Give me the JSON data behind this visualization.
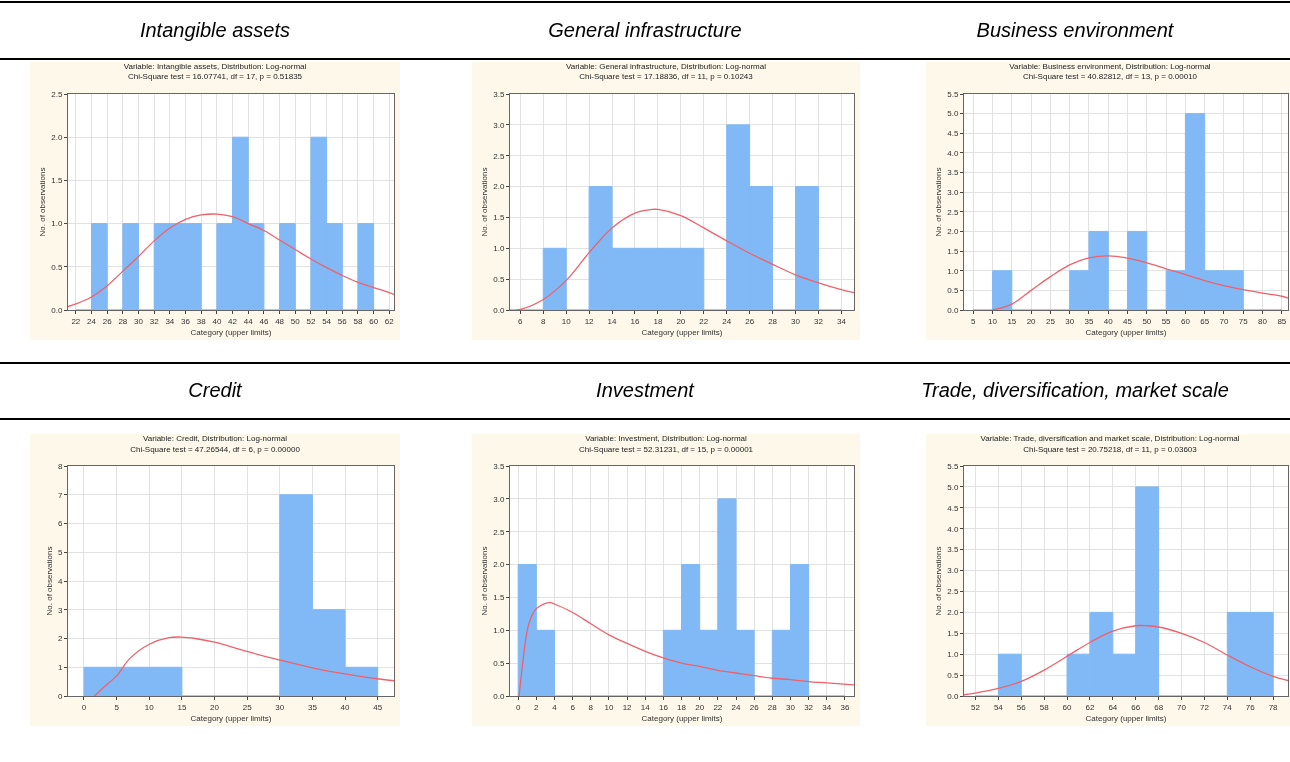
{
  "chart_data": [
    {
      "type": "histogram",
      "title": "Intangible assets",
      "subtitle": "Variable: Intangible assets, Distribution: Log-normal",
      "annotations": [
        "Chi-Square test = 16.07741, df = 17, p = 0.51835"
      ],
      "xlabel": "Category (upper limits)",
      "ylabel": "No. of observations",
      "grid": true,
      "bins": [
        22,
        24,
        26,
        28,
        30,
        32,
        34,
        36,
        38,
        40,
        42,
        44,
        46,
        48,
        50,
        52,
        54,
        56,
        58,
        60,
        62
      ],
      "series": [
        {
          "color": "#80b9f5",
          "values": [
            0,
            1,
            0,
            1,
            0,
            1,
            1,
            1,
            0,
            1,
            2,
            1,
            0,
            1,
            0,
            2,
            1,
            0,
            1,
            0
          ]
        },
        {
          "type": "line",
          "color": "#f0606a",
          "x": [
            21,
            22,
            24,
            26,
            28,
            30,
            32,
            34,
            36,
            38,
            40,
            42,
            44,
            46,
            48,
            50,
            52,
            54,
            56,
            58,
            60,
            62,
            62.6
          ],
          "values": [
            0.04,
            0.07,
            0.15,
            0.28,
            0.45,
            0.62,
            0.8,
            0.95,
            1.05,
            1.1,
            1.11,
            1.08,
            1.0,
            0.92,
            0.81,
            0.7,
            0.59,
            0.49,
            0.4,
            0.32,
            0.26,
            0.2,
            0.18
          ]
        }
      ],
      "xlim": [
        21,
        62.6
      ],
      "xticks": [
        22,
        24,
        26,
        28,
        30,
        32,
        34,
        36,
        38,
        40,
        42,
        44,
        46,
        48,
        50,
        52,
        54,
        56,
        58,
        60,
        62
      ],
      "ylim": [
        0,
        2.5
      ],
      "yticks": [
        {
          "value": 0,
          "label": "0.0"
        },
        {
          "value": 0.5,
          "label": "0.5"
        },
        {
          "value": 1,
          "label": "1.0"
        },
        {
          "value": 1.5,
          "label": "1.5"
        },
        {
          "value": 2,
          "label": "2.0"
        },
        {
          "value": 2.5,
          "label": "2.5"
        }
      ]
    },
    {
      "type": "histogram",
      "title": "General infrastructure",
      "subtitle": "Variable: General infrastructure, Distribution: Log-normal",
      "annotations": [
        "Chi-Square test = 17.18836, df = 11, p = 0.10243"
      ],
      "xlabel": "Category (upper limits)",
      "ylabel": "No. of observations",
      "grid": true,
      "bins": [
        6,
        8,
        10,
        12,
        14,
        16,
        18,
        20,
        22,
        24,
        26,
        28,
        30,
        32,
        34
      ],
      "series": [
        {
          "color": "#80b9f5",
          "values": [
            0,
            1,
            0,
            2,
            1,
            1,
            1,
            1,
            0,
            3,
            2,
            0,
            2,
            0
          ]
        },
        {
          "type": "line",
          "color": "#f0606a",
          "x": [
            5.1,
            6,
            8,
            10,
            12,
            14,
            16,
            17.5,
            18,
            20,
            22,
            24,
            26,
            28,
            30,
            32,
            34,
            35.1
          ],
          "values": [
            0,
            0.01,
            0.17,
            0.48,
            0.93,
            1.33,
            1.57,
            1.63,
            1.63,
            1.53,
            1.33,
            1.12,
            0.92,
            0.74,
            0.57,
            0.44,
            0.33,
            0.28
          ]
        }
      ],
      "xlim": [
        5.1,
        35.1
      ],
      "xticks": [
        6,
        8,
        10,
        12,
        14,
        16,
        18,
        20,
        22,
        24,
        26,
        28,
        30,
        32,
        34
      ],
      "ylim": [
        0,
        3.5
      ],
      "yticks": [
        {
          "value": 0,
          "label": "0.0"
        },
        {
          "value": 0.5,
          "label": "0.5"
        },
        {
          "value": 1,
          "label": "1.0"
        },
        {
          "value": 1.5,
          "label": "1.5"
        },
        {
          "value": 2,
          "label": "2.0"
        },
        {
          "value": 2.5,
          "label": "2.5"
        },
        {
          "value": 3,
          "label": "3.0"
        },
        {
          "value": 3.5,
          "label": "3.5"
        }
      ]
    },
    {
      "type": "histogram",
      "title": "Business environment",
      "subtitle": "Variable: Business environment, Distribution: Log-normal",
      "annotations": [
        "Chi-Square test = 40.82812, df = 13, p = 0.00010"
      ],
      "xlabel": "Category (upper limits)",
      "ylabel": "No. of observations",
      "grid": true,
      "bins": [
        5,
        10,
        15,
        20,
        25,
        30,
        35,
        40,
        45,
        50,
        55,
        60,
        65,
        70,
        75,
        80,
        85
      ],
      "series": [
        {
          "color": "#80b9f5",
          "values": [
            0,
            1,
            0,
            0,
            0,
            1,
            2,
            0,
            2,
            0,
            1,
            5,
            1,
            1,
            0,
            0
          ]
        },
        {
          "type": "line",
          "color": "#f0606a",
          "x": [
            10,
            15,
            20,
            25,
            30,
            35,
            40,
            45,
            50,
            55,
            60,
            65,
            70,
            75,
            80,
            85,
            86.6
          ],
          "values": [
            0,
            0.15,
            0.5,
            0.85,
            1.15,
            1.33,
            1.38,
            1.32,
            1.2,
            1.05,
            0.9,
            0.75,
            0.62,
            0.52,
            0.43,
            0.35,
            0.3
          ]
        }
      ],
      "xlim": [
        2.6,
        86.6
      ],
      "xticks": [
        5,
        10,
        15,
        20,
        25,
        30,
        35,
        40,
        45,
        50,
        55,
        60,
        65,
        70,
        75,
        80,
        85
      ],
      "ylim": [
        0,
        5.5
      ],
      "yticks": [
        {
          "value": 0,
          "label": "0.0"
        },
        {
          "value": 0.5,
          "label": "0.5"
        },
        {
          "value": 1,
          "label": "1.0"
        },
        {
          "value": 1.5,
          "label": "1.5"
        },
        {
          "value": 2,
          "label": "2.0"
        },
        {
          "value": 2.5,
          "label": "2.5"
        },
        {
          "value": 3,
          "label": "3.0"
        },
        {
          "value": 3.5,
          "label": "3.5"
        },
        {
          "value": 4,
          "label": "4.0"
        },
        {
          "value": 4.5,
          "label": "4.5"
        },
        {
          "value": 5,
          "label": "5.0"
        },
        {
          "value": 5.5,
          "label": "5.5"
        }
      ]
    },
    {
      "type": "histogram",
      "title": "Credit",
      "subtitle": "Variable: Credit, Distribution: Log-normal",
      "annotations": [
        "Chi-Square test = 47.26544, df = 6, p = 0.00000"
      ],
      "xlabel": "Category (upper limits)",
      "ylabel": "No. of observations",
      "grid": true,
      "bins": [
        0,
        5,
        10,
        15,
        20,
        25,
        30,
        35,
        40,
        45
      ],
      "series": [
        {
          "color": "#80b9f5",
          "values": [
            1,
            1,
            1,
            0,
            0,
            0,
            7,
            3,
            1
          ]
        },
        {
          "type": "line",
          "color": "#f0606a",
          "x": [
            1.6,
            3,
            5,
            7,
            10,
            13,
            15,
            17,
            20,
            25,
            30,
            35,
            40,
            45,
            47.5
          ],
          "values": [
            0,
            0.3,
            0.7,
            1.3,
            1.8,
            2.03,
            2.05,
            2.0,
            1.87,
            1.55,
            1.25,
            0.98,
            0.77,
            0.6,
            0.53
          ]
        }
      ],
      "xlim": [
        -2.45,
        47.5
      ],
      "xticks": [
        0,
        5,
        10,
        15,
        20,
        25,
        30,
        35,
        40,
        45
      ],
      "ylim": [
        0,
        8
      ],
      "yticks": [
        0,
        1,
        2,
        3,
        4,
        5,
        6,
        7,
        8
      ]
    },
    {
      "type": "histogram",
      "title": "Investment",
      "subtitle": "Variable: Investment, Distribution: Log-normal",
      "annotations": [
        "Chi-Square test = 52.31231, df = 15, p = 0.00001"
      ],
      "xlabel": "Category (upper limits)",
      "ylabel": "No. of observations",
      "grid": true,
      "bins": [
        0,
        2,
        4,
        6,
        8,
        10,
        12,
        14,
        16,
        18,
        20,
        22,
        24,
        26,
        28,
        30,
        32,
        34,
        36
      ],
      "series": [
        {
          "color": "#80b9f5",
          "values": [
            2,
            1,
            0,
            0,
            0,
            0,
            0,
            0,
            1,
            2,
            1,
            3,
            1,
            0,
            1,
            2,
            0,
            0
          ]
        },
        {
          "type": "line",
          "color": "#f0606a",
          "x": [
            0.1,
            0.5,
            1,
            1.5,
            2,
            3,
            3.5,
            4,
            6,
            8,
            10,
            12,
            14,
            16,
            18,
            20,
            22,
            24,
            26,
            28,
            30,
            32,
            34,
            37
          ],
          "values": [
            0,
            0.5,
            1.0,
            1.22,
            1.33,
            1.41,
            1.42,
            1.4,
            1.27,
            1.1,
            0.93,
            0.8,
            0.68,
            0.58,
            0.5,
            0.45,
            0.39,
            0.35,
            0.31,
            0.27,
            0.25,
            0.22,
            0.2,
            0.17
          ]
        }
      ],
      "xlim": [
        -0.9,
        37
      ],
      "xticks": [
        0,
        2,
        4,
        6,
        8,
        10,
        12,
        14,
        16,
        18,
        20,
        22,
        24,
        26,
        28,
        30,
        32,
        34,
        36
      ],
      "ylim": [
        0,
        3.5
      ],
      "yticks": [
        {
          "value": 0,
          "label": "0.0"
        },
        {
          "value": 0.5,
          "label": "0.5"
        },
        {
          "value": 1,
          "label": "1.0"
        },
        {
          "value": 1.5,
          "label": "1.5"
        },
        {
          "value": 2,
          "label": "2.0"
        },
        {
          "value": 2.5,
          "label": "2.5"
        },
        {
          "value": 3,
          "label": "3.0"
        },
        {
          "value": 3.5,
          "label": "3.5"
        }
      ]
    },
    {
      "type": "histogram",
      "title": "Trade, diversification, market scale",
      "subtitle": "Variable: Trade, diversification and market scale, Distribution: Log-normal",
      "annotations": [
        "Chi-Square test = 20.75218, df = 11, p = 0.03603"
      ],
      "xlabel": "Category (upper limits)",
      "ylabel": "No. of observations",
      "grid": true,
      "bins": [
        52,
        54,
        56,
        58,
        60,
        62,
        64,
        66,
        68,
        70,
        72,
        74,
        76,
        78
      ],
      "series": [
        {
          "color": "#80b9f5",
          "values": [
            0,
            1,
            0,
            0,
            1,
            2,
            1,
            5,
            0,
            0,
            0,
            2,
            2
          ]
        },
        {
          "type": "line",
          "color": "#f0606a",
          "x": [
            51,
            52,
            54,
            56,
            58,
            60,
            62,
            64,
            66,
            67,
            68,
            70,
            72,
            74,
            76,
            78,
            79.3
          ],
          "values": [
            0.03,
            0.07,
            0.18,
            0.35,
            0.62,
            0.95,
            1.28,
            1.55,
            1.68,
            1.68,
            1.65,
            1.5,
            1.28,
            0.98,
            0.7,
            0.47,
            0.37
          ]
        }
      ],
      "xlim": [
        51,
        79.3
      ],
      "xticks": [
        52,
        54,
        56,
        58,
        60,
        62,
        64,
        66,
        68,
        70,
        72,
        74,
        76,
        78
      ],
      "ylim": [
        0,
        5.5
      ],
      "yticks": [
        {
          "value": 0,
          "label": "0.0"
        },
        {
          "value": 0.5,
          "label": "0.5"
        },
        {
          "value": 1,
          "label": "1.0"
        },
        {
          "value": 1.5,
          "label": "1.5"
        },
        {
          "value": 2,
          "label": "2.0"
        },
        {
          "value": 2.5,
          "label": "2.5"
        },
        {
          "value": 3,
          "label": "3.0"
        },
        {
          "value": 3.5,
          "label": "3.5"
        },
        {
          "value": 4,
          "label": "4.0"
        },
        {
          "value": 4.5,
          "label": "4.5"
        },
        {
          "value": 5,
          "label": "5.0"
        },
        {
          "value": 5.5,
          "label": "5.5"
        }
      ]
    }
  ]
}
